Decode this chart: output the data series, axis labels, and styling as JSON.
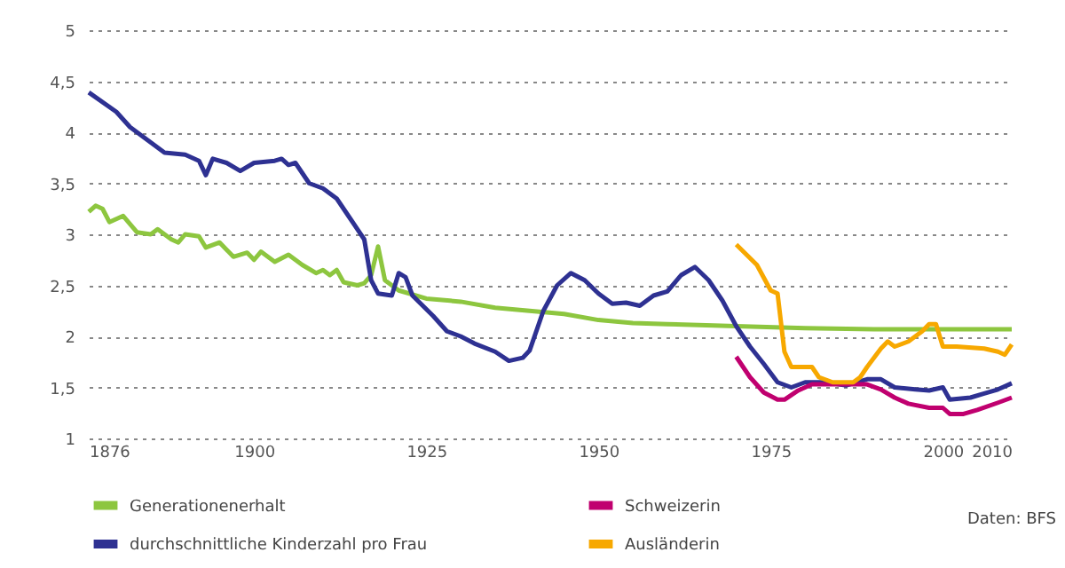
{
  "chart_data": {
    "type": "line",
    "xlim": [
      1876,
      2010
    ],
    "xticks": [
      1876,
      1900,
      1925,
      1950,
      1975,
      2000,
      2010
    ],
    "ylim": [
      1,
      5
    ],
    "yticks": [
      1,
      {
        "value": 1.5,
        "label": "1,5"
      },
      2,
      {
        "value": 2.5,
        "label": "2,5"
      },
      3,
      {
        "value": 3.5,
        "label": "3,5"
      },
      4,
      {
        "value": 4.5,
        "label": "4,5"
      },
      5
    ],
    "grid": "y",
    "legend": "bottom",
    "annotations": [
      "Daten: BFS"
    ],
    "series": [
      {
        "name": "Generationenerhalt",
        "color": "#8dc63f",
        "x": [
          1876,
          1877,
          1878,
          1879,
          1881,
          1883,
          1885,
          1886,
          1888,
          1889,
          1890,
          1892,
          1893,
          1895,
          1897,
          1899,
          1900,
          1901,
          1903,
          1905,
          1907,
          1909,
          1910,
          1911,
          1912,
          1913,
          1915,
          1916,
          1917,
          1918,
          1919,
          1920,
          1921,
          1925,
          1930,
          1935,
          1940,
          1945,
          1950,
          1955,
          1960,
          1970,
          1980,
          1990,
          2000,
          2010
        ],
        "values": [
          3.22,
          3.28,
          3.25,
          3.12,
          3.18,
          3.02,
          3.0,
          3.05,
          2.95,
          2.92,
          3.0,
          2.98,
          2.87,
          2.92,
          2.78,
          2.82,
          2.75,
          2.83,
          2.73,
          2.8,
          2.7,
          2.62,
          2.65,
          2.6,
          2.65,
          2.53,
          2.5,
          2.52,
          2.6,
          2.88,
          2.55,
          2.5,
          2.45,
          2.37,
          2.34,
          2.28,
          2.25,
          2.22,
          2.16,
          2.13,
          2.12,
          2.1,
          2.08,
          2.07,
          2.07,
          2.07
        ]
      },
      {
        "name": "durchschnittliche Kinderzahl pro Frau",
        "color": "#2e3192",
        "x": [
          1876,
          1880,
          1882,
          1884,
          1887,
          1890,
          1892,
          1893,
          1894,
          1896,
          1898,
          1900,
          1903,
          1904,
          1905,
          1906,
          1908,
          1910,
          1912,
          1914,
          1916,
          1917,
          1918,
          1920,
          1921,
          1922,
          1923,
          1926,
          1928,
          1930,
          1932,
          1935,
          1937,
          1939,
          1940,
          1942,
          1944,
          1946,
          1948,
          1950,
          1952,
          1954,
          1956,
          1958,
          1960,
          1962,
          1964,
          1966,
          1968,
          1970,
          1972,
          1974,
          1976,
          1978,
          1980,
          1983,
          1986,
          1989,
          1991,
          1993,
          1996,
          1998,
          2000,
          2001,
          2004,
          2006,
          2008,
          2010
        ],
        "values": [
          4.39,
          4.2,
          4.05,
          3.95,
          3.8,
          3.78,
          3.72,
          3.58,
          3.74,
          3.7,
          3.62,
          3.7,
          3.72,
          3.74,
          3.68,
          3.7,
          3.5,
          3.45,
          3.35,
          3.15,
          2.95,
          2.55,
          2.42,
          2.4,
          2.62,
          2.58,
          2.4,
          2.2,
          2.05,
          2.0,
          1.93,
          1.85,
          1.76,
          1.79,
          1.86,
          2.25,
          2.5,
          2.62,
          2.55,
          2.42,
          2.32,
          2.33,
          2.3,
          2.4,
          2.44,
          2.6,
          2.68,
          2.55,
          2.35,
          2.1,
          1.9,
          1.73,
          1.55,
          1.5,
          1.55,
          1.55,
          1.52,
          1.58,
          1.58,
          1.5,
          1.48,
          1.47,
          1.5,
          1.38,
          1.4,
          1.44,
          1.48,
          1.54
        ]
      },
      {
        "name": "Schweizerin",
        "color": "#c0006f",
        "x": [
          1970,
          1972,
          1974,
          1976,
          1977,
          1979,
          1981,
          1985,
          1989,
          1991,
          1993,
          1995,
          1998,
          2000,
          2001,
          2003,
          2005,
          2008,
          2010
        ],
        "values": [
          1.8,
          1.6,
          1.45,
          1.38,
          1.38,
          1.47,
          1.53,
          1.53,
          1.53,
          1.48,
          1.4,
          1.34,
          1.3,
          1.3,
          1.24,
          1.24,
          1.28,
          1.35,
          1.4
        ]
      },
      {
        "name": "Ausländerin",
        "color": "#f7a800",
        "x": [
          1970,
          1973,
          1975,
          1976,
          1977,
          1978,
          1981,
          1982,
          1984,
          1987,
          1988,
          1989,
          1991,
          1992,
          1993,
          1995,
          1997,
          1998,
          1999,
          2000,
          2002,
          2006,
          2008,
          2009,
          2010
        ],
        "values": [
          2.9,
          2.7,
          2.45,
          2.42,
          1.85,
          1.7,
          1.7,
          1.6,
          1.55,
          1.55,
          1.6,
          1.7,
          1.88,
          1.95,
          1.9,
          1.95,
          2.05,
          2.12,
          2.12,
          1.9,
          1.9,
          1.88,
          1.85,
          1.82,
          1.92
        ]
      }
    ]
  }
}
